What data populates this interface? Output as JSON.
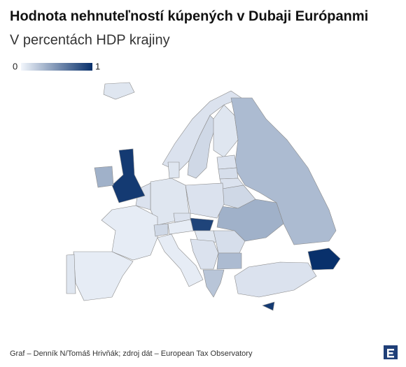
{
  "title": "Hodnota nehnuteľností kúpených v Dubaji Európanmi",
  "subtitle": "V percentách HDP krajiny",
  "legend": {
    "min": 0,
    "max": 1
  },
  "color_scale": {
    "low": "#f2f6fc",
    "high": "#08306b"
  },
  "regions": [
    0.08,
    0.1,
    0.15,
    0.08,
    0.3,
    0.1,
    0.12,
    0.1,
    0.15,
    0.35,
    0.1,
    0.08,
    0.08,
    0.1,
    0.05,
    0.15,
    0.05,
    0.1,
    0.9,
    0.08,
    0.12,
    0.05,
    0.1,
    0.3,
    0.25,
    0.1,
    1,
    0.95,
    0.05,
    0.08,
    0.95,
    0.35
  ],
  "footer": "Graf – Denník N/Tomáš Hrivňák; zdroj dát – European Tax Observatory"
}
